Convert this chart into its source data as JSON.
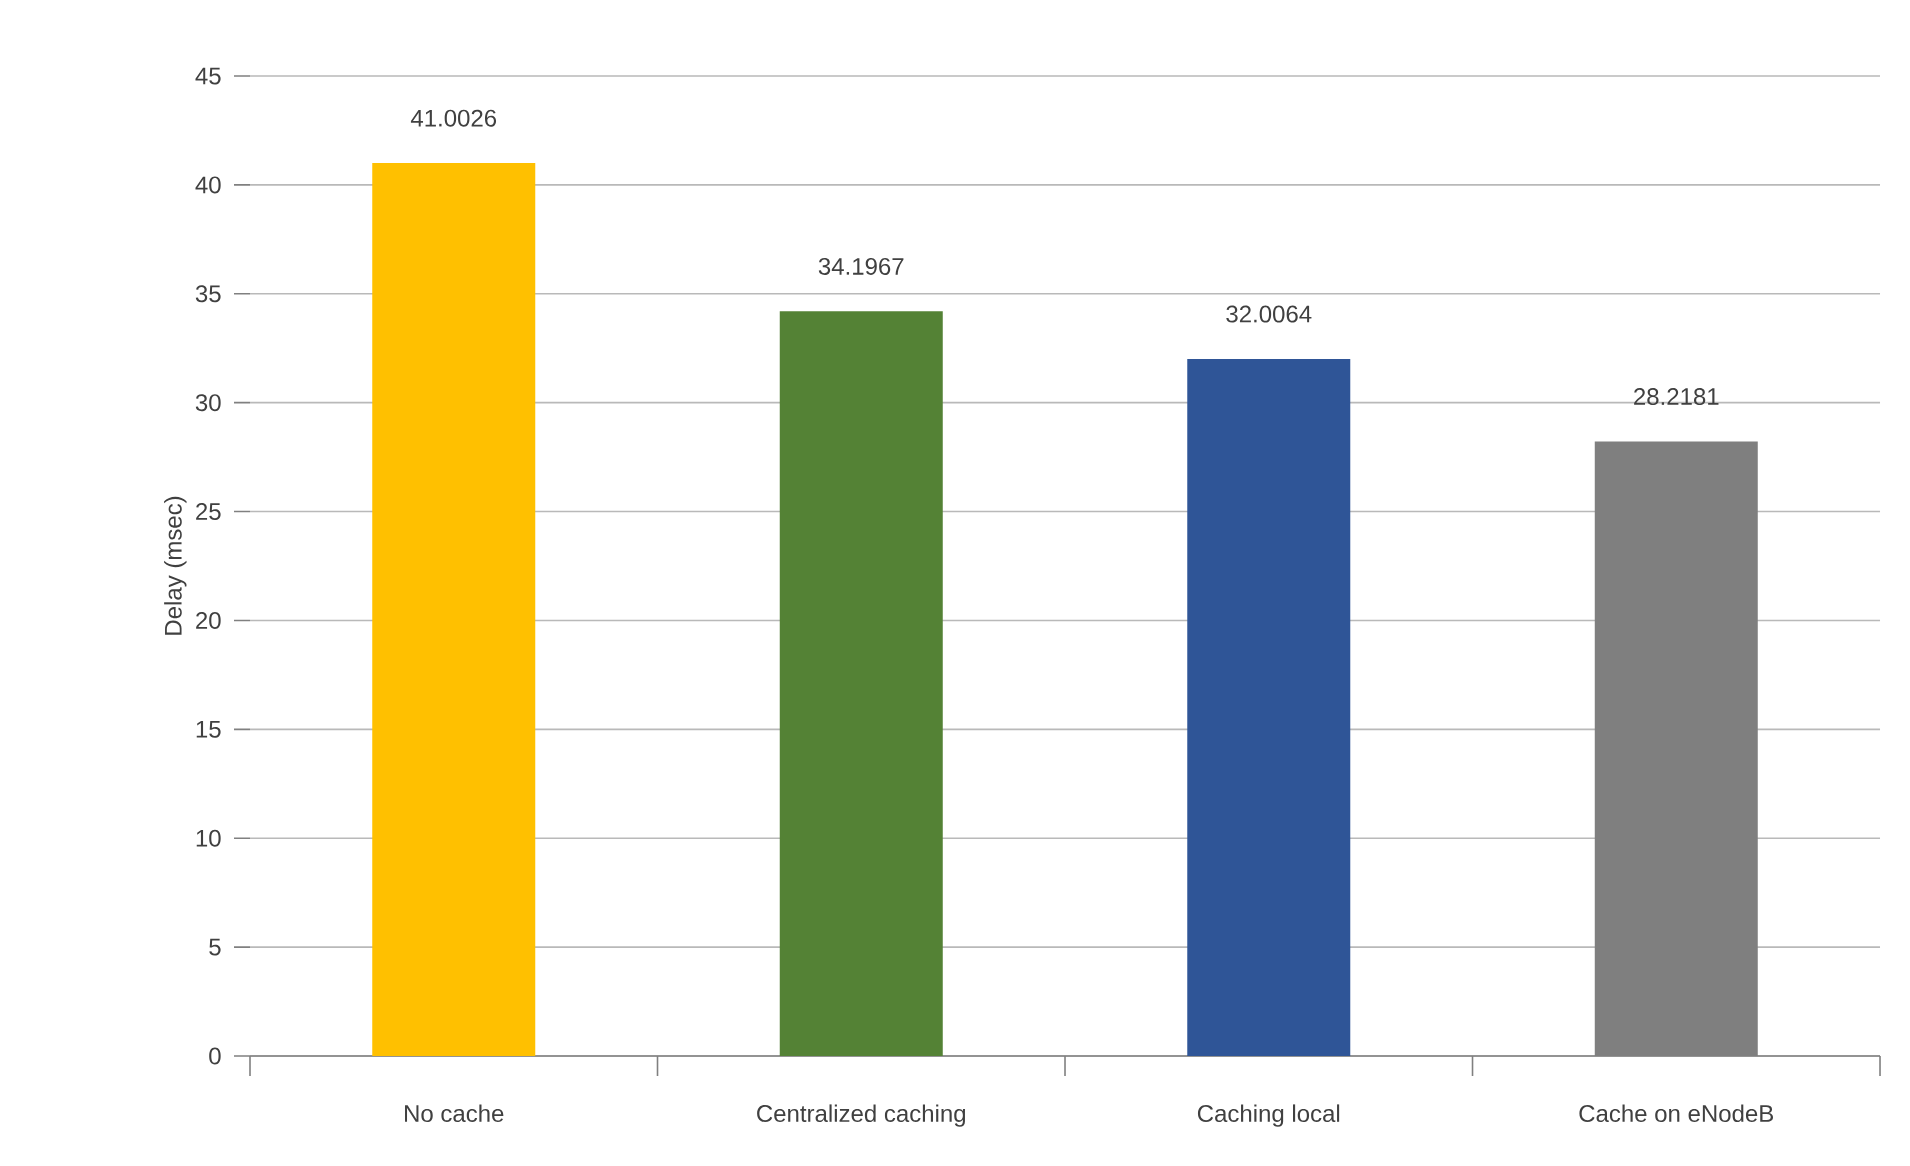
{
  "chart_data": {
    "type": "bar",
    "ylabel": "Delay (msec)",
    "categories": [
      "No cache",
      "Centralized caching",
      "Caching local",
      "Cache on eNodeB"
    ],
    "values": [
      41.0026,
      34.1967,
      32.0064,
      28.2181
    ],
    "colors": [
      "#ffc000",
      "#548235",
      "#2f5597",
      "#7f7f7f"
    ],
    "ylim": [
      0,
      45
    ],
    "yticks": [
      0,
      5,
      10,
      15,
      20,
      25,
      30,
      35,
      40,
      45
    ],
    "grid": "y",
    "data_labels": true
  }
}
